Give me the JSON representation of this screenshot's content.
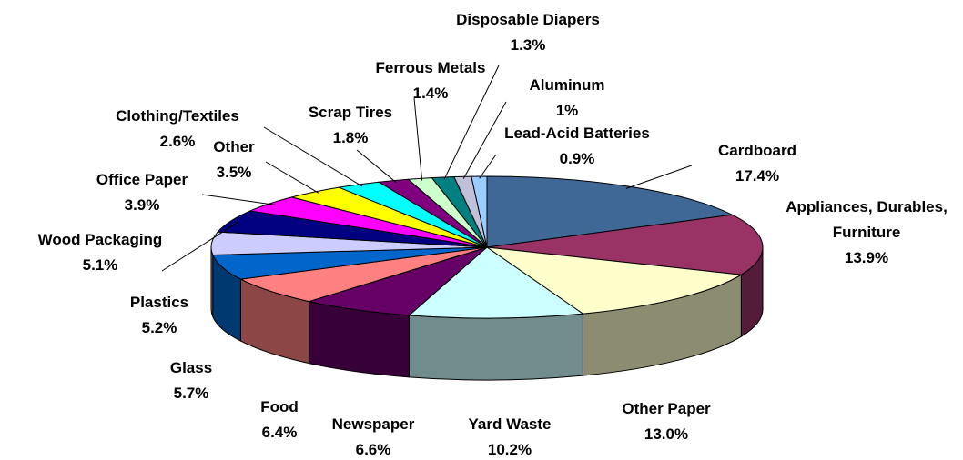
{
  "chart_data": {
    "type": "pie3d",
    "categories": [
      "Cardboard",
      "Appliances, Durables, Furniture",
      "Other Paper",
      "Yard Waste",
      "Newspaper",
      "Food",
      "Glass",
      "Plastics",
      "Wood Packaging",
      "Office Paper",
      "Other",
      "Clothing/Textiles",
      "Scrap Tires",
      "Ferrous Metals",
      "Disposable Diapers",
      "Aluminum",
      "Lead-Acid Batteries"
    ],
    "values": [
      17.4,
      13.9,
      13.0,
      10.2,
      6.6,
      6.4,
      5.7,
      5.2,
      5.1,
      3.9,
      3.5,
      2.6,
      1.8,
      1.4,
      1.3,
      1,
      0.9
    ],
    "value_labels": [
      "17.4%",
      "13.9%",
      "13.0%",
      "10.2%",
      "6.6%",
      "6.4%",
      "5.7%",
      "5.2%",
      "5.1%",
      "3.9%",
      "3.5%",
      "2.6%",
      "1.8%",
      "1.4%",
      "1.3%",
      "1%",
      "0.9%"
    ],
    "colors": [
      "#3f6897",
      "#993366",
      "#ffffcc",
      "#ccffff",
      "#660066",
      "#ff8080",
      "#0066cc",
      "#ccccff",
      "#000080",
      "#ff00ff",
      "#ffff00",
      "#00ffff",
      "#800080",
      "#ccffcc",
      "#008080",
      "#c0c0d8",
      "#99ccff"
    ]
  }
}
